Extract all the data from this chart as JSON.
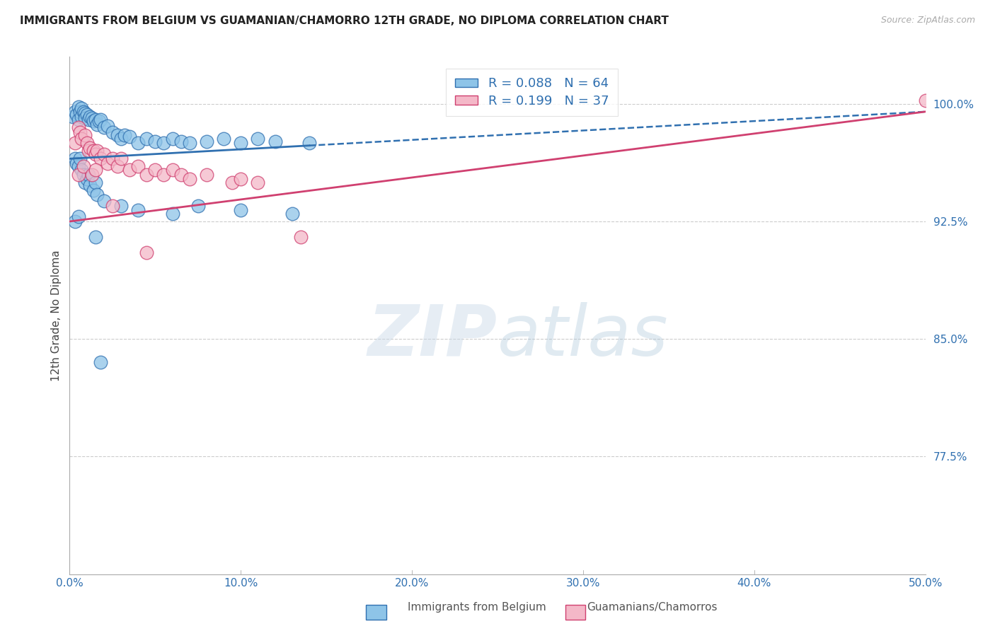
{
  "title": "IMMIGRANTS FROM BELGIUM VS GUAMANIAN/CHAMORRO 12TH GRADE, NO DIPLOMA CORRELATION CHART",
  "source": "Source: ZipAtlas.com",
  "ylabel": "12th Grade, No Diploma",
  "legend_label_blue": "Immigrants from Belgium",
  "legend_label_pink": "Guamanians/Chamorros",
  "r_blue": 0.088,
  "n_blue": 64,
  "r_pink": 0.199,
  "n_pink": 37,
  "xlim": [
    0.0,
    50.0
  ],
  "ylim": [
    70.0,
    103.0
  ],
  "yticks": [
    77.5,
    85.0,
    92.5,
    100.0
  ],
  "xticks": [
    0.0,
    10.0,
    20.0,
    30.0,
    40.0,
    50.0
  ],
  "xtick_labels": [
    "0.0%",
    "10.0%",
    "20.0%",
    "30.0%",
    "40.0%",
    "50.0%"
  ],
  "ytick_labels": [
    "77.5%",
    "85.0%",
    "92.5%",
    "100.0%"
  ],
  "color_blue": "#8ec4e8",
  "color_pink": "#f4b8c8",
  "color_blue_line": "#3070b0",
  "color_pink_line": "#d04070",
  "color_axis_text": "#3070b0",
  "background_color": "#ffffff",
  "watermark_text": "ZIPatlas",
  "blue_line_x": [
    0.0,
    50.0
  ],
  "blue_line_y": [
    96.5,
    99.5
  ],
  "blue_solid_end_x": 14.0,
  "pink_line_x": [
    0.0,
    50.0
  ],
  "pink_line_y": [
    92.5,
    99.5
  ],
  "blue_scatter_x": [
    0.2,
    0.3,
    0.4,
    0.5,
    0.5,
    0.6,
    0.7,
    0.7,
    0.8,
    0.9,
    0.9,
    1.0,
    1.1,
    1.2,
    1.3,
    1.4,
    1.5,
    1.6,
    1.7,
    1.8,
    2.0,
    2.2,
    2.5,
    2.8,
    3.0,
    3.2,
    3.5,
    4.0,
    4.5,
    5.0,
    5.5,
    6.0,
    6.5,
    7.0,
    8.0,
    9.0,
    10.0,
    11.0,
    12.0,
    14.0,
    0.3,
    0.4,
    0.5,
    0.6,
    0.7,
    0.8,
    0.9,
    1.0,
    1.1,
    1.2,
    1.4,
    1.5,
    1.6,
    2.0,
    3.0,
    4.0,
    6.0,
    7.5,
    10.0,
    13.0,
    0.3,
    0.5,
    1.5,
    1.8
  ],
  "blue_scatter_y": [
    99.2,
    99.5,
    99.3,
    99.8,
    99.0,
    99.5,
    99.7,
    99.2,
    99.5,
    99.4,
    99.1,
    99.3,
    99.0,
    99.2,
    99.1,
    98.9,
    99.0,
    98.7,
    98.9,
    99.0,
    98.5,
    98.6,
    98.2,
    98.0,
    97.8,
    98.0,
    97.9,
    97.5,
    97.8,
    97.6,
    97.5,
    97.8,
    97.6,
    97.5,
    97.6,
    97.8,
    97.5,
    97.8,
    97.6,
    97.5,
    96.5,
    96.2,
    96.0,
    96.5,
    95.8,
    95.5,
    95.0,
    95.2,
    95.5,
    94.8,
    94.5,
    95.0,
    94.2,
    93.8,
    93.5,
    93.2,
    93.0,
    93.5,
    93.2,
    93.0,
    92.5,
    92.8,
    91.5,
    83.5
  ],
  "pink_scatter_x": [
    0.3,
    0.5,
    0.6,
    0.7,
    0.9,
    1.0,
    1.1,
    1.2,
    1.4,
    1.5,
    1.6,
    1.8,
    2.0,
    2.2,
    2.5,
    2.8,
    3.0,
    3.5,
    4.0,
    4.5,
    5.0,
    5.5,
    6.0,
    6.5,
    7.0,
    8.0,
    9.5,
    10.0,
    11.0,
    13.5,
    0.5,
    0.8,
    1.3,
    1.5,
    2.5,
    4.5,
    50.0
  ],
  "pink_scatter_y": [
    97.5,
    98.5,
    98.2,
    97.8,
    98.0,
    97.5,
    97.0,
    97.2,
    97.0,
    96.8,
    97.0,
    96.5,
    96.8,
    96.2,
    96.5,
    96.0,
    96.5,
    95.8,
    96.0,
    95.5,
    95.8,
    95.5,
    95.8,
    95.5,
    95.2,
    95.5,
    95.0,
    95.2,
    95.0,
    91.5,
    95.5,
    96.0,
    95.5,
    95.8,
    93.5,
    90.5,
    100.2
  ]
}
